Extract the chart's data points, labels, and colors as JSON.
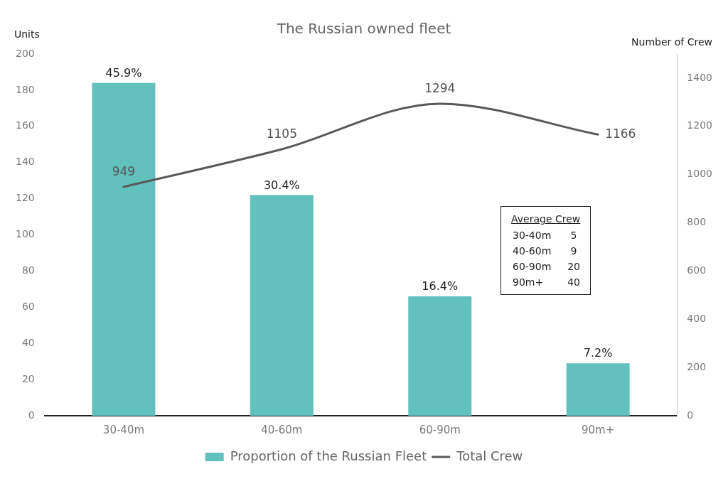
{
  "chart_data": {
    "type": "bar",
    "title": "The Russian owned fleet",
    "ylabel": "Units",
    "y2label": "Number of Crew",
    "categories": [
      "30-40m",
      "40-60m",
      "60-90m",
      "90m+"
    ],
    "series": [
      {
        "name": "Proportion of the Russian Fleet",
        "color": "#62c0bd",
        "values": [
          184,
          122,
          66,
          29
        ]
      },
      {
        "name": "Total Crew",
        "type": "line",
        "axis": "y2",
        "color": "#595959",
        "values": [
          949,
          1105,
          1294,
          1166
        ],
        "value_labels": [
          "949",
          "1105",
          "1294",
          "1166"
        ],
        "marker": "none",
        "line_style": "solid"
      }
    ],
    "ylim": [
      0,
      200
    ],
    "yticks": [
      0,
      20,
      40,
      60,
      80,
      100,
      120,
      140,
      160,
      180,
      200
    ],
    "y2lim": [
      0,
      1500
    ],
    "y2ticks": [
      0,
      200,
      400,
      600,
      800,
      1000,
      1200,
      1400
    ],
    "grid": false,
    "legend": "bottom",
    "annotations": [
      {
        "text": "45.9%",
        "x": "30-40m",
        "y": 184
      },
      {
        "text": "30.4%",
        "x": "40-60m",
        "y": 122
      },
      {
        "text": "16.4%",
        "x": "60-90m",
        "y": 66
      },
      {
        "text": "7.2%",
        "x": "90m+",
        "y": 29
      },
      "Average Crew",
      "30-40m",
      "5",
      "40-60m",
      "9",
      "60-90m",
      "20",
      "90m+",
      "40"
    ]
  }
}
